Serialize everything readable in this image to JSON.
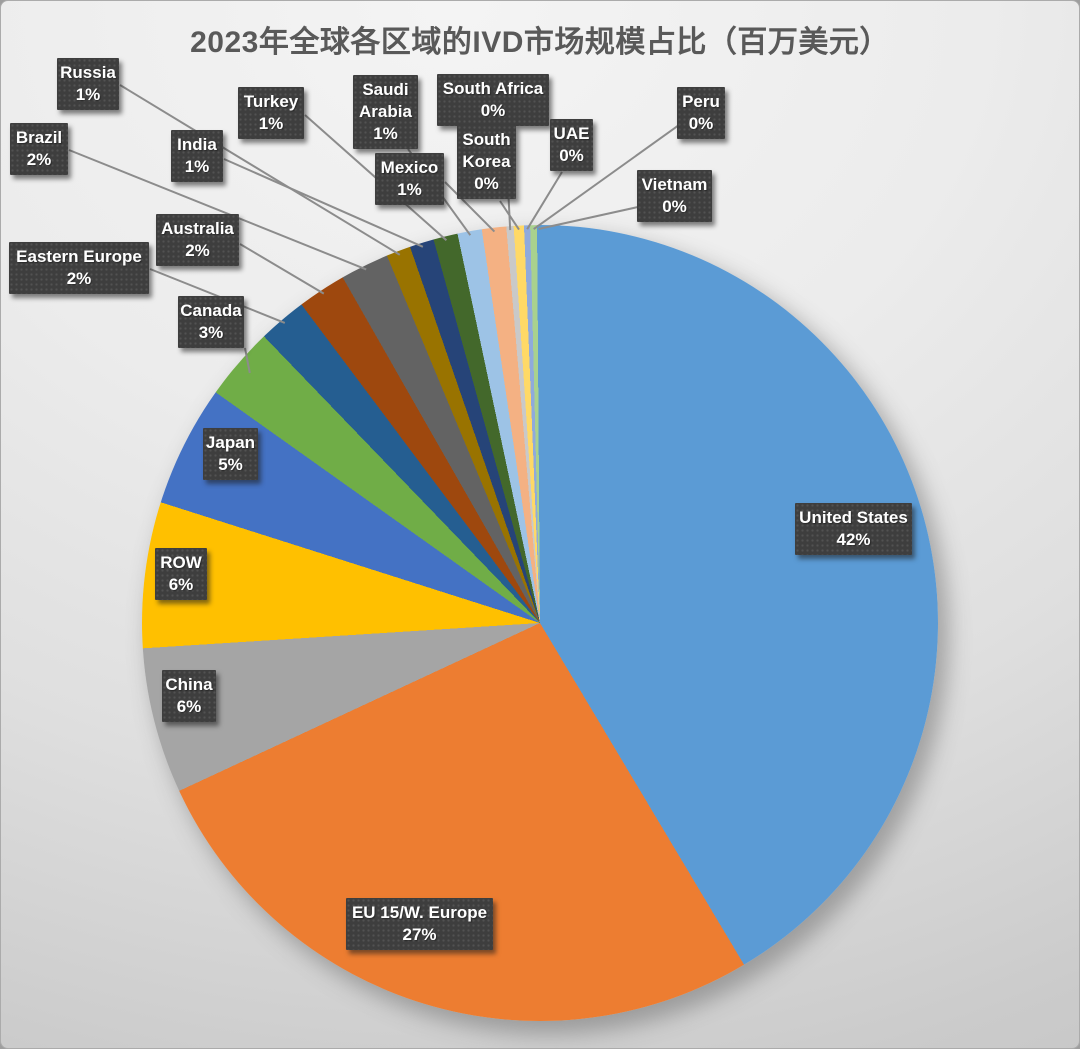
{
  "title": "2023年全球各区域的IVD市场规模占比（百万美元）",
  "chart_data": {
    "type": "pie",
    "title": "2023年全球各区域的IVD市场规模占比（百万美元）",
    "legend_position": "none",
    "label_style": "category name + percentage in dark callout boxes",
    "start_angle_deg": 0,
    "direction": "clockwise",
    "slices": [
      {
        "id": "united-states",
        "label": "United States",
        "pct_label": "42%",
        "value": 42,
        "color": "#5B9BD5"
      },
      {
        "id": "eu-15-w-europe",
        "label": "EU 15/W. Europe",
        "pct_label": "27%",
        "value": 27,
        "color": "#ED7D31"
      },
      {
        "id": "china",
        "label": "China",
        "pct_label": "6%",
        "value": 6,
        "color": "#A5A5A5"
      },
      {
        "id": "row",
        "label": "ROW",
        "pct_label": "6%",
        "value": 6,
        "color": "#FFC000"
      },
      {
        "id": "japan",
        "label": "Japan",
        "pct_label": "5%",
        "value": 5,
        "color": "#4472C4"
      },
      {
        "id": "canada",
        "label": "Canada",
        "pct_label": "3%",
        "value": 3,
        "color": "#70AD47"
      },
      {
        "id": "eastern-europe",
        "label": "Eastern Europe",
        "pct_label": "2%",
        "value": 2,
        "color": "#255E91"
      },
      {
        "id": "australia",
        "label": "Australia",
        "pct_label": "2%",
        "value": 2,
        "color": "#9E480E"
      },
      {
        "id": "brazil",
        "label": "Brazil",
        "pct_label": "2%",
        "value": 2,
        "color": "#636363"
      },
      {
        "id": "russia",
        "label": "Russia",
        "pct_label": "1%",
        "value": 1,
        "color": "#997300"
      },
      {
        "id": "india",
        "label": "India",
        "pct_label": "1%",
        "value": 1,
        "color": "#264478"
      },
      {
        "id": "turkey",
        "label": "Turkey",
        "pct_label": "1%",
        "value": 1,
        "color": "#43682B"
      },
      {
        "id": "saudi-arabia",
        "label": "Saudi Arabia",
        "pct_label": "1%",
        "value": 1,
        "color": "#9DC3E6"
      },
      {
        "id": "mexico",
        "label": "Mexico",
        "pct_label": "1%",
        "value": 1,
        "color": "#F4B183"
      },
      {
        "id": "south-africa",
        "label": "South Africa",
        "pct_label": "0%",
        "value": 0,
        "render_weight": 0.3,
        "color": "#C9C9C9"
      },
      {
        "id": "south-korea",
        "label": "South Korea",
        "pct_label": "0%",
        "value": 0,
        "render_weight": 0.42,
        "color": "#FFD966"
      },
      {
        "id": "uae",
        "label": "UAE",
        "pct_label": "0%",
        "value": 0,
        "render_weight": 0.25,
        "color": "#8FAADC"
      },
      {
        "id": "peru",
        "label": "Peru",
        "pct_label": "0%",
        "value": 0,
        "render_weight": 0.28,
        "color": "#A9D18E"
      },
      {
        "id": "vietnam",
        "label": "Vietnam",
        "pct_label": "0%",
        "value": 0,
        "render_weight": 0.12,
        "color": "#5B9BD5"
      }
    ]
  },
  "colors": {
    "background_top": "#F4F4F4",
    "background_bottom": "#C5C5C5",
    "label_box": "#3E3E3E",
    "label_text": "#FFFFFF",
    "leader_line": "#8C8C8C",
    "title_text": "#595959"
  }
}
